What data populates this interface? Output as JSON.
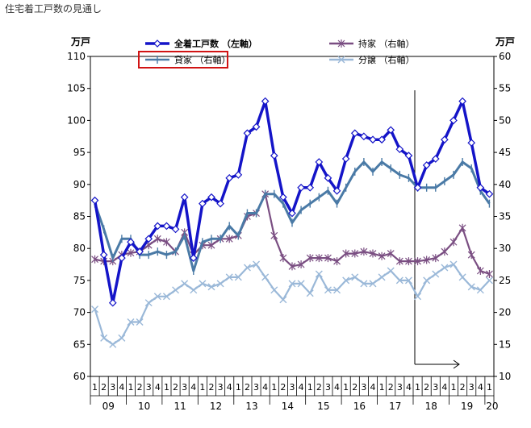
{
  "chart_data": {
    "type": "line",
    "title": "住宅着工戸数の見通し",
    "left_axis": {
      "unit": "万戸",
      "range": [
        60,
        110
      ],
      "ticks": [
        60,
        65,
        70,
        75,
        80,
        85,
        90,
        95,
        100,
        105,
        110
      ]
    },
    "right_axis": {
      "unit": "万戸",
      "range": [
        10,
        60
      ],
      "ticks": [
        10,
        15,
        20,
        25,
        30,
        35,
        40,
        45,
        50,
        55,
        60
      ]
    },
    "x_quarters": [
      "1",
      "2",
      "3",
      "4",
      "1",
      "2",
      "3",
      "4",
      "1",
      "2",
      "3",
      "4",
      "1",
      "2",
      "3",
      "4",
      "1",
      "2",
      "3",
      "4",
      "1",
      "2",
      "3",
      "4",
      "1",
      "2",
      "3",
      "4",
      "1",
      "2",
      "3",
      "4",
      "1",
      "2",
      "3",
      "4",
      "1",
      "2",
      "3",
      "4",
      "1",
      "2",
      "3",
      "4",
      "1"
    ],
    "x_years": [
      "09",
      "10",
      "11",
      "12",
      "13",
      "14",
      "15",
      "16",
      "17",
      "18",
      "19",
      "20"
    ],
    "forecast_start_index": 36,
    "series": [
      {
        "name": "全着工戸数 （左軸）",
        "axis": "left",
        "color": "#1414c8",
        "marker": "diamond",
        "highlight": false,
        "values": [
          87.5,
          79.0,
          71.5,
          78.5,
          81.0,
          79.5,
          81.5,
          83.5,
          83.5,
          83.0,
          88.0,
          78.5,
          87.0,
          88.0,
          87.0,
          91.0,
          91.5,
          98.0,
          99.0,
          103.0,
          94.5,
          88.0,
          85.5,
          89.5,
          89.5,
          93.5,
          91.0,
          89.0,
          94.0,
          98.0,
          97.5,
          97.0,
          97.0,
          98.5,
          95.5,
          94.5,
          89.5,
          93.0,
          94.0,
          97.0,
          100.0,
          103.0,
          96.5,
          89.5,
          88.5
        ]
      },
      {
        "name": "持家 （右軸）",
        "axis": "right",
        "color": "#7a4e82",
        "marker": "star",
        "highlight": false,
        "values": [
          28.3,
          28.0,
          28.0,
          29.0,
          29.3,
          29.5,
          30.5,
          31.5,
          31.0,
          29.5,
          32.5,
          29.0,
          30.5,
          30.5,
          31.5,
          31.5,
          32.0,
          35.0,
          35.5,
          38.5,
          32.0,
          28.5,
          27.2,
          27.5,
          28.5,
          28.5,
          28.5,
          28.0,
          29.2,
          29.2,
          29.5,
          29.2,
          28.8,
          29.2,
          28.0,
          28.0,
          28.0,
          28.2,
          28.5,
          29.5,
          31.0,
          33.2,
          29.0,
          26.5,
          26.0
        ]
      },
      {
        "name": "貸家 （右軸）",
        "axis": "right",
        "color": "#4a7aa6",
        "marker": "bar",
        "highlight": true,
        "values": [
          37.0,
          33.0,
          28.5,
          31.5,
          31.5,
          29.0,
          29.0,
          29.5,
          29.0,
          29.5,
          32.0,
          26.5,
          31.0,
          31.5,
          31.5,
          33.5,
          32.0,
          35.5,
          35.5,
          38.5,
          38.5,
          37.0,
          34.0,
          36.0,
          37.0,
          38.0,
          39.0,
          37.0,
          39.5,
          42.0,
          43.5,
          42.0,
          43.5,
          42.5,
          41.5,
          41.0,
          39.5,
          39.5,
          39.5,
          40.5,
          41.5,
          43.5,
          42.5,
          39.0,
          37.0
        ]
      },
      {
        "name": "分譲 （右軸）",
        "axis": "right",
        "color": "#9ab8d8",
        "marker": "x",
        "highlight": false,
        "values": [
          20.5,
          16.0,
          15.0,
          16.0,
          18.5,
          18.5,
          21.5,
          22.5,
          22.5,
          23.5,
          24.5,
          23.5,
          24.5,
          24.0,
          24.5,
          25.5,
          25.5,
          27.0,
          27.5,
          25.5,
          23.5,
          22.0,
          24.5,
          24.5,
          23.0,
          26.0,
          23.5,
          23.5,
          25.0,
          25.5,
          24.5,
          24.5,
          25.5,
          26.5,
          25.0,
          25.0,
          22.5,
          25.0,
          26.0,
          27.0,
          27.5,
          25.5,
          24.0,
          23.5,
          25.0
        ]
      }
    ]
  }
}
